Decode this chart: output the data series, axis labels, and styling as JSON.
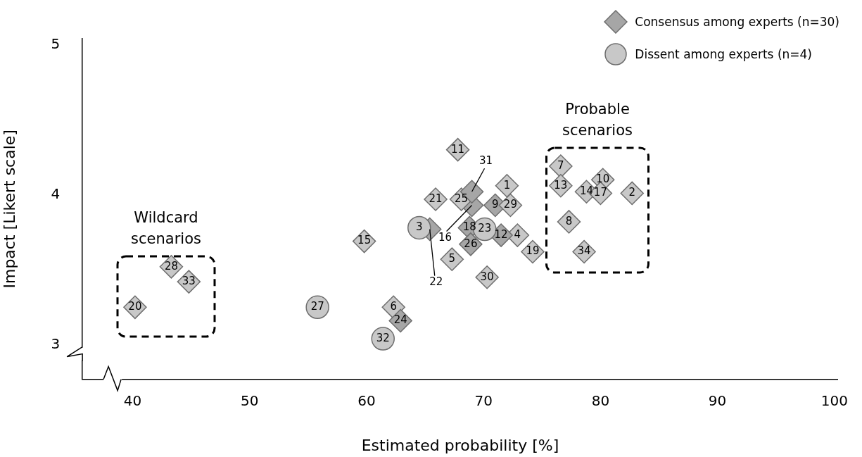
{
  "chart_data": {
    "type": "scatter",
    "xlabel": "Estimated probability [%]",
    "ylabel": "Impact [Likert scale]",
    "xlim": [
      35.7,
      100.3
    ],
    "xticks": [
      40,
      50,
      60,
      70,
      80,
      90,
      100
    ],
    "ylim": [
      2.77,
      5.04
    ],
    "yticks": [
      3,
      4,
      5
    ],
    "grid": false,
    "legend": "top right",
    "annotations": [
      "Wildcard scenarios",
      "Probable scenarios",
      {
        "text": "31",
        "x": 69.0,
        "y": 4.02
      },
      {
        "text": "16",
        "x": 69.0,
        "y": 3.93
      },
      {
        "text": "22",
        "x": 65.4,
        "y": 3.77
      },
      {
        "text": "1",
        "x": 72.0,
        "y": 4.06
      },
      {
        "text": "2",
        "x": 82.7,
        "y": 4.01
      },
      {
        "text": "4",
        "x": 72.9,
        "y": 3.73
      },
      {
        "text": "5",
        "x": 67.3,
        "y": 3.57
      },
      {
        "text": "6",
        "x": 62.3,
        "y": 3.25
      },
      {
        "text": "7",
        "x": 76.6,
        "y": 4.19
      },
      {
        "text": "8",
        "x": 77.3,
        "y": 3.82
      },
      {
        "text": "9",
        "x": 71.0,
        "y": 3.93
      },
      {
        "text": "10",
        "x": 80.2,
        "y": 4.1
      },
      {
        "text": "11",
        "x": 67.8,
        "y": 4.3
      },
      {
        "text": "12",
        "x": 71.5,
        "y": 3.73
      },
      {
        "text": "13",
        "x": 76.6,
        "y": 4.06
      },
      {
        "text": "14",
        "x": 78.8,
        "y": 4.02
      },
      {
        "text": "15",
        "x": 59.8,
        "y": 3.69
      },
      {
        "text": "17",
        "x": 80.0,
        "y": 4.01
      },
      {
        "text": "18",
        "x": 68.8,
        "y": 3.78
      },
      {
        "text": "19",
        "x": 74.2,
        "y": 3.62
      },
      {
        "text": "20",
        "x": 40.2,
        "y": 3.25
      },
      {
        "text": "21",
        "x": 65.9,
        "y": 3.97
      },
      {
        "text": "24",
        "x": 62.9,
        "y": 3.16
      },
      {
        "text": "25",
        "x": 68.1,
        "y": 3.97
      },
      {
        "text": "26",
        "x": 68.9,
        "y": 3.67
      },
      {
        "text": "28",
        "x": 43.3,
        "y": 3.52
      },
      {
        "text": "29",
        "x": 72.3,
        "y": 3.93
      },
      {
        "text": "30",
        "x": 70.3,
        "y": 3.45
      },
      {
        "text": "33",
        "x": 44.8,
        "y": 3.42
      },
      {
        "text": "34",
        "x": 78.6,
        "y": 3.62
      },
      {
        "text": "3",
        "x": 64.5,
        "y": 3.78
      },
      {
        "text": "23",
        "x": 70.1,
        "y": 3.77
      },
      {
        "text": "27",
        "x": 55.8,
        "y": 3.25
      },
      {
        "text": "32",
        "x": 61.4,
        "y": 3.04
      }
    ],
    "series": [
      {
        "name": "Consensus among experts (n=30)",
        "marker": "diamond",
        "color": "#a6a6a6",
        "x": [
          72.0,
          82.7,
          72.9,
          67.3,
          62.3,
          76.6,
          77.3,
          71.0,
          80.2,
          67.8,
          71.5,
          76.6,
          78.8,
          59.8,
          69.0,
          80.0,
          68.8,
          74.2,
          40.2,
          65.9,
          65.4,
          62.9,
          68.1,
          68.9,
          43.3,
          72.3,
          70.3,
          69.0,
          44.8,
          78.6
        ],
        "values": [
          4.06,
          4.01,
          3.73,
          3.57,
          3.25,
          4.19,
          3.82,
          3.93,
          4.1,
          4.3,
          3.73,
          4.06,
          4.02,
          3.69,
          3.93,
          4.01,
          3.78,
          3.62,
          3.25,
          3.97,
          3.77,
          3.16,
          3.97,
          3.67,
          3.52,
          3.93,
          3.45,
          4.02,
          3.42,
          3.62
        ],
        "colors": [
          "#c8c8c8",
          "#c8c8c8",
          "#c8c8c8",
          "#c8c8c8",
          "#c8c8c8",
          "#c8c8c8",
          "#c8c8c8",
          "#a6a6a6",
          "#c8c8c8",
          "#c8c8c8",
          "#a6a6a6",
          "#c8c8c8",
          "#c8c8c8",
          "#c8c8c8",
          "#a6a6a6",
          "#c8c8c8",
          "#a6a6a6",
          "#c8c8c8",
          "#c8c8c8",
          "#c8c8c8",
          "#a6a6a6",
          "#a6a6a6",
          "#c8c8c8",
          "#a6a6a6",
          "#c8c8c8",
          "#c8c8c8",
          "#c8c8c8",
          "#a6a6a6",
          "#c8c8c8",
          "#c8c8c8"
        ]
      },
      {
        "name": "Dissent among experts (n=4)",
        "marker": "circle",
        "color": "#c8c8c8",
        "x": [
          64.5,
          70.1,
          55.8,
          61.4
        ],
        "values": [
          3.78,
          3.77,
          3.25,
          3.04
        ]
      }
    ]
  }
}
